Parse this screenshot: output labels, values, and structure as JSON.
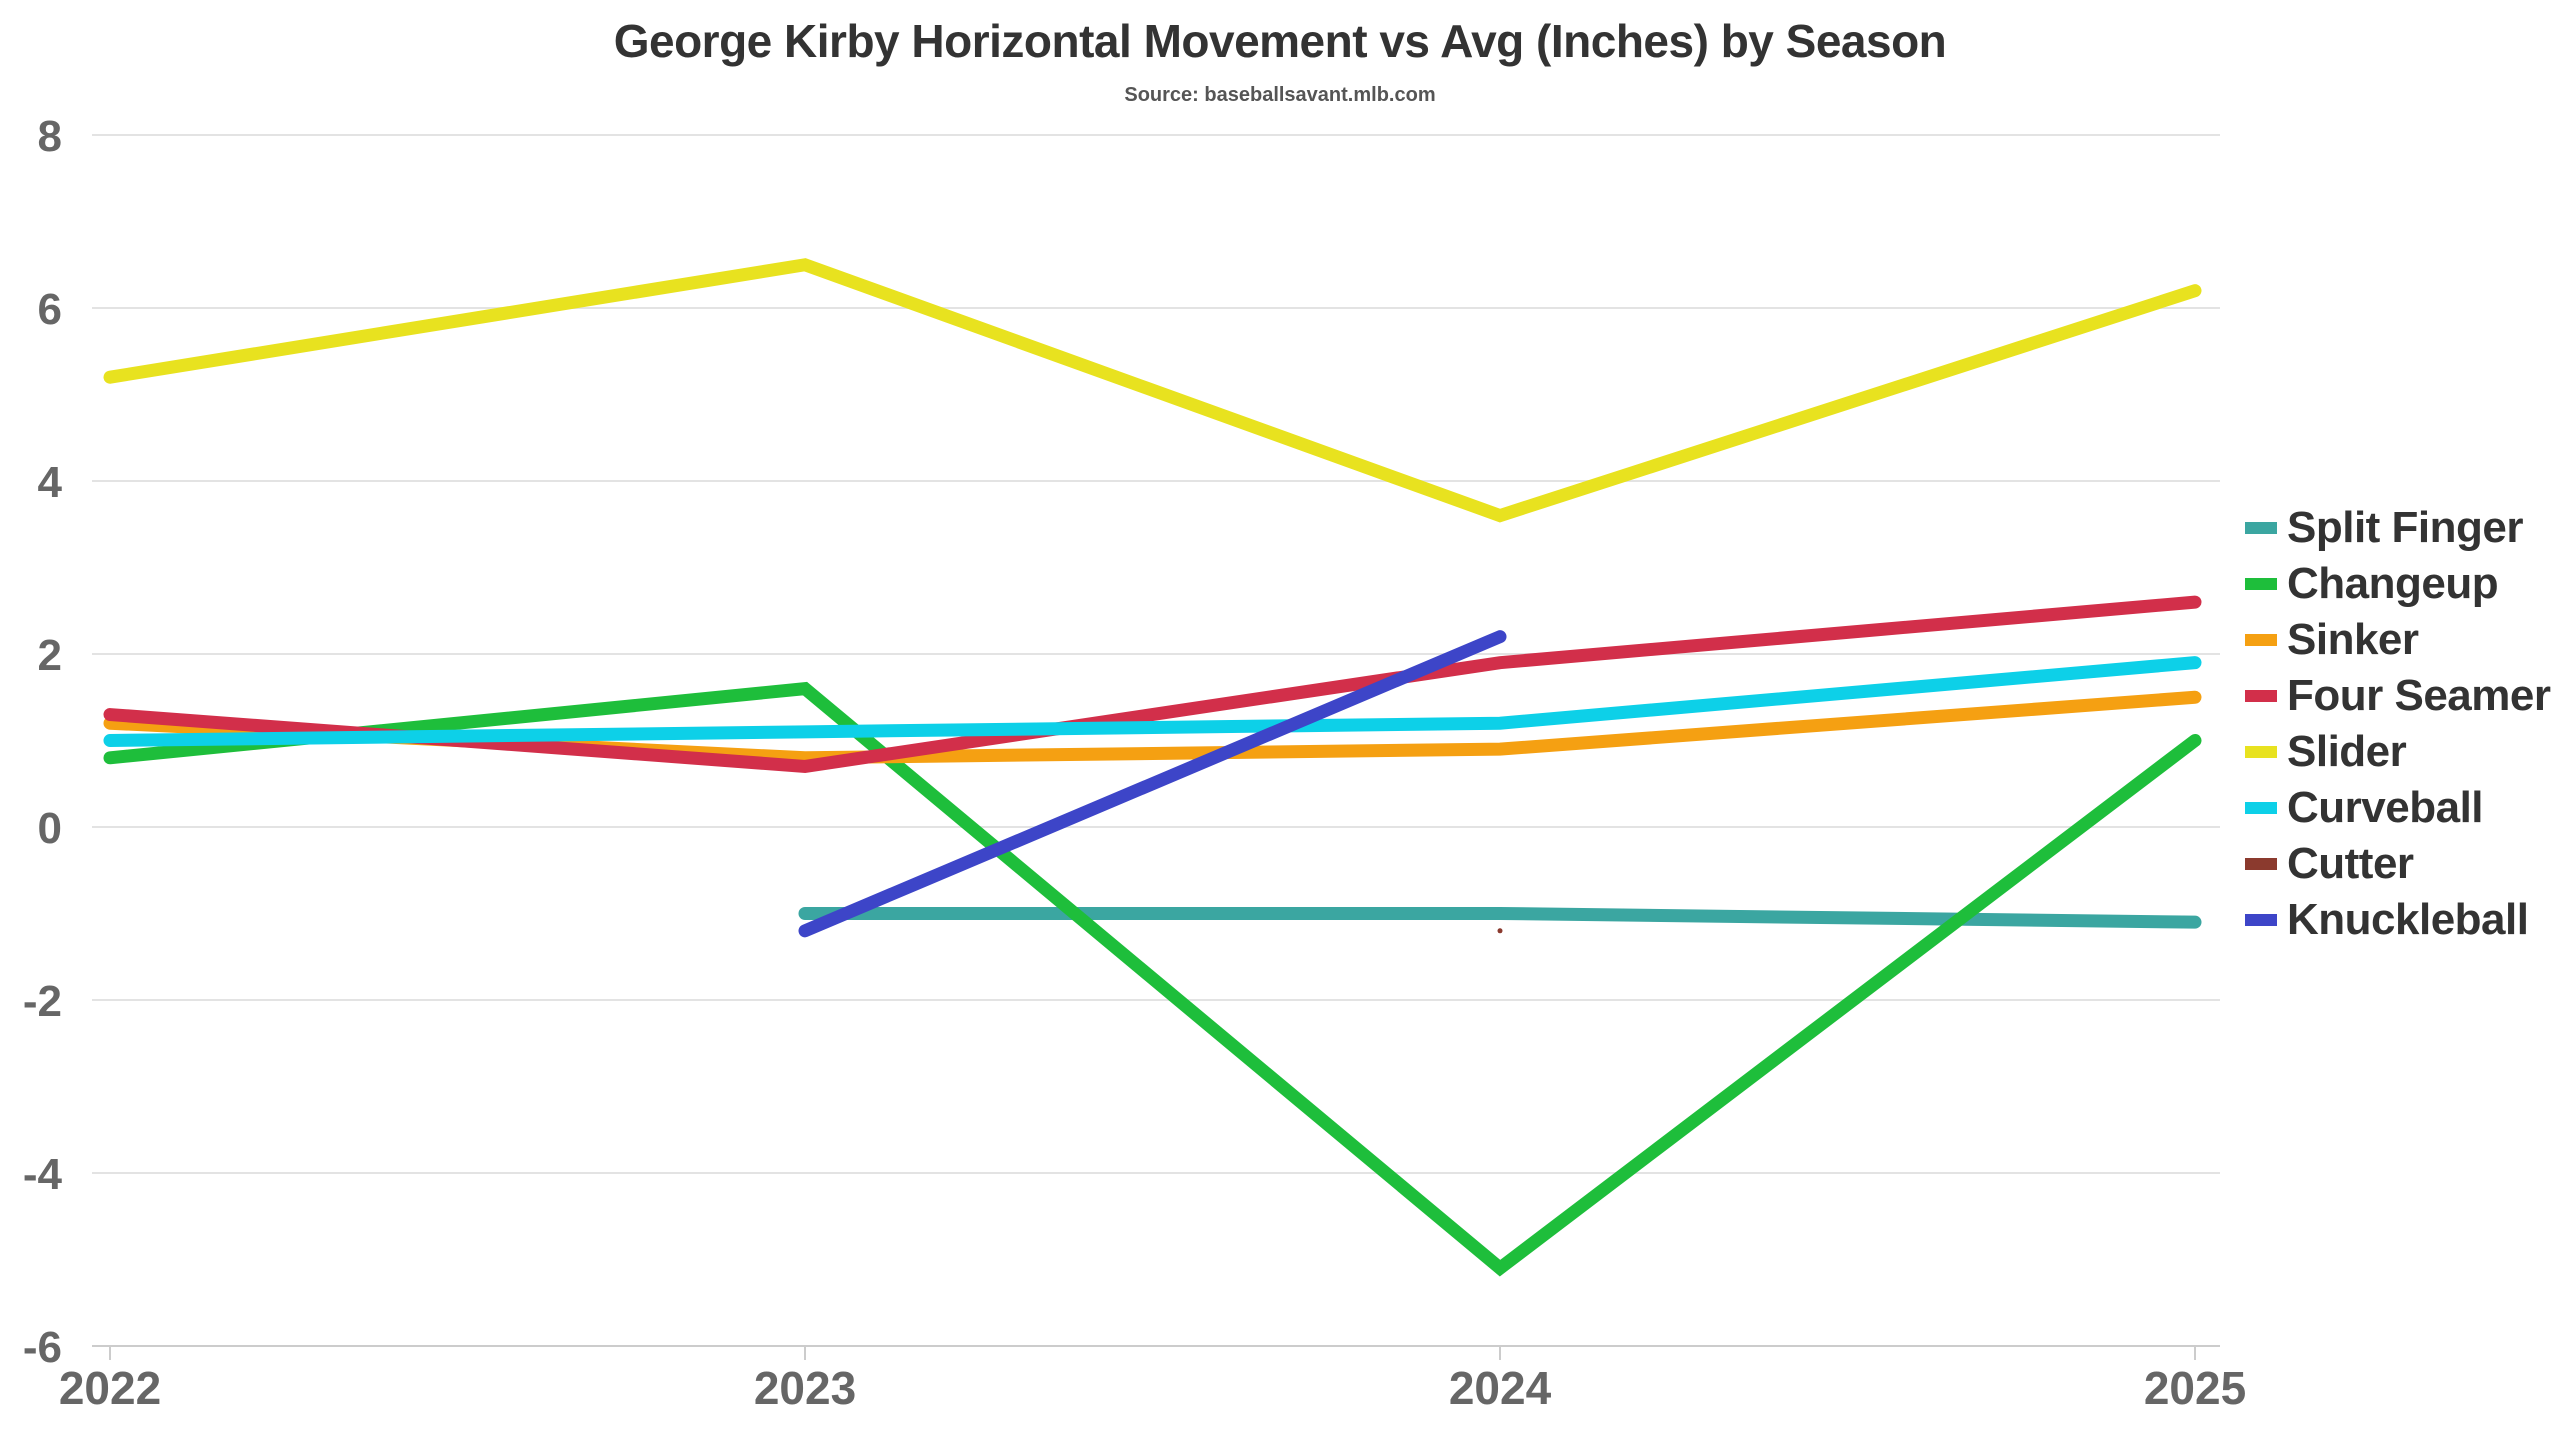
{
  "chart_data": {
    "type": "line",
    "title": "George Kirby Horizontal Movement vs Avg (Inches) by Season",
    "subtitle": "Source: baseballsavant.mlb.com",
    "x": [
      "2022",
      "2023",
      "2024",
      "2025"
    ],
    "xlabel": "",
    "ylabel": "",
    "ylim": [
      -6,
      8
    ],
    "yticks": [
      "8",
      "6",
      "4",
      "2",
      "0",
      "-2",
      "-4",
      "-6"
    ],
    "grid": true,
    "legend_position": "right",
    "series": [
      {
        "name": "Split Finger",
        "color": "#3BA6A1",
        "values": [
          null,
          -1.0,
          -1.0,
          -1.1
        ]
      },
      {
        "name": "Changeup",
        "color": "#1EBE3B",
        "values": [
          0.8,
          1.6,
          -5.1,
          1.0
        ]
      },
      {
        "name": "Sinker",
        "color": "#F5A012",
        "values": [
          1.2,
          0.8,
          0.9,
          1.5
        ]
      },
      {
        "name": "Four Seamer",
        "color": "#D22F4A",
        "values": [
          1.3,
          0.7,
          1.9,
          2.6
        ]
      },
      {
        "name": "Slider",
        "color": "#E8E21F",
        "values": [
          5.2,
          6.5,
          3.6,
          6.2
        ]
      },
      {
        "name": "Curveball",
        "color": "#0DD0E8",
        "values": [
          1.0,
          1.1,
          1.2,
          1.9
        ]
      },
      {
        "name": "Cutter",
        "color": "#8B3A2E",
        "values": [
          null,
          null,
          -1.2,
          null
        ]
      },
      {
        "name": "Knuckleball",
        "color": "#3D45C8",
        "values": [
          null,
          -1.2,
          2.2,
          null
        ]
      }
    ]
  }
}
